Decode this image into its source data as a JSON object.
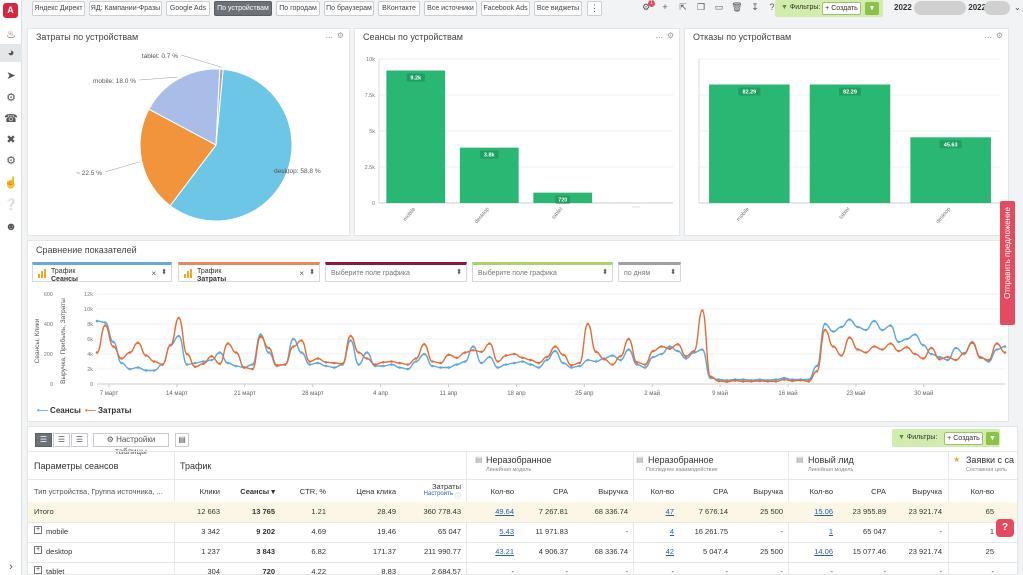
{
  "sidebar": {
    "logo": "A",
    "icons": [
      "bell-icon",
      "dashboard-icon",
      "rocket-icon",
      "gears-icon",
      "phone-icon",
      "tools-icon",
      "gear-icon",
      "hand-icon",
      "help-icon",
      "user-icon",
      "expand-icon"
    ]
  },
  "topbar": {
    "tabs": [
      "Яндекс Директ",
      "ЯД: Кампании-Фразы",
      "Google Ads",
      "По устройствам",
      "По городам",
      "По браузерам",
      "ВКонтакте",
      "Все источники",
      "Facebook Ads",
      "Все виджеты"
    ],
    "active_tab": "По устройствам",
    "more": "⋮",
    "badge": "1",
    "filters_label": "Фильтры:",
    "create_label": "Создать",
    "period_start": "2022",
    "period_end": "2022"
  },
  "pie": {
    "title": "Затраты по устройствам",
    "chart_data": {
      "type": "pie",
      "slices": [
        {
          "label": "desktop: 58.8 %",
          "value": 58.8,
          "color": "#6ec6e6"
        },
        {
          "label": "~ 22.5 %",
          "value": 22.5,
          "color": "#f1943b"
        },
        {
          "label": "mobile: 18.0 %",
          "value": 18.0,
          "color": "#a8bde8"
        },
        {
          "label": "tablet: 0.7 %",
          "value": 0.7,
          "color": "#aaaaaa"
        }
      ]
    }
  },
  "sessions": {
    "title": "Сеансы по устройствам",
    "chart_data": {
      "type": "bar",
      "categories": [
        "mobile",
        "desktop",
        "tablet",
        ""
      ],
      "values": [
        9202,
        3843,
        720,
        0
      ],
      "value_labels": [
        "9.2k",
        "3.8k",
        "720",
        ""
      ],
      "yticks": [
        "0",
        "2.5k",
        "5k",
        "7.5k",
        "10k"
      ],
      "ylim": [
        0,
        10000
      ],
      "color": "#2ab673"
    }
  },
  "bounces": {
    "title": "Отказы по устройствам",
    "chart_data": {
      "type": "bar",
      "categories": [
        "mobile",
        "tablet",
        "desktop"
      ],
      "values": [
        82.29,
        82.29,
        45.63
      ],
      "value_labels": [
        "82.29",
        "82.29",
        "45.63"
      ],
      "ylim": [
        0,
        100
      ],
      "color": "#2ab673"
    }
  },
  "compare": {
    "title": "Сравнение показателей",
    "selectors": [
      {
        "line1": "Трафик",
        "line2": "Сеансы",
        "x": "×",
        "color": "#6ba8d8"
      },
      {
        "line1": "Трафик",
        "line2": "Затраты",
        "x": "×",
        "color": "#e8875a"
      },
      {
        "placeholder": "Выберите поле графика",
        "color": "#8b1a3a"
      },
      {
        "placeholder": "Выберите поле графика",
        "color": "#a7d46b"
      },
      {
        "placeholder": "по дням",
        "color": "#a0a0a0"
      }
    ],
    "arrow": "⬍",
    "yleft_label": "Сеансы, Клики",
    "yright_label": "Выручка, Прибыль, Затраты",
    "chart_data": {
      "type": "line",
      "x_ticks": [
        "7 март",
        "14 март",
        "21 март",
        "28 март",
        "4 апр",
        "11 апр",
        "18 апр",
        "25 апр",
        "2 май",
        "9 май",
        "16 май",
        "23 май",
        "30 май"
      ],
      "yleft_ticks": [
        "0",
        "200",
        "400",
        "600"
      ],
      "yright_ticks": [
        "0",
        "2k",
        "4k",
        "6k",
        "8k",
        "10k",
        "12k"
      ],
      "yleft_lim": [
        0,
        600
      ],
      "yright_lim": [
        0,
        12000
      ],
      "series": [
        {
          "name": "Сеансы",
          "color": "#5fa8dd",
          "axis": "left",
          "values": [
            420,
            410,
            280,
            140,
            100,
            110,
            90,
            90,
            130,
            260,
            320,
            130,
            140,
            150,
            160,
            210,
            140,
            120,
            110,
            130,
            330,
            210,
            120,
            130,
            300,
            210,
            130,
            140,
            120,
            110,
            130,
            290,
            130,
            210,
            120,
            120,
            130,
            110,
            100,
            150,
            200,
            120,
            110,
            110,
            130,
            150,
            250,
            140,
            180,
            110,
            130,
            140,
            150,
            130,
            110,
            160,
            220,
            140,
            110,
            120,
            160,
            150,
            170,
            190,
            160,
            230,
            130,
            110,
            180,
            200,
            250,
            220,
            170,
            210,
            230,
            40,
            30,
            25,
            30,
            30,
            25,
            30,
            25,
            30,
            40,
            30,
            30,
            30,
            120,
            400,
            350,
            380,
            430,
            380,
            360,
            420,
            360,
            390,
            280,
            300,
            330,
            260,
            200,
            180,
            160,
            240,
            200,
            280,
            180,
            150,
            230,
            250
          ]
        },
        {
          "name": "Затраты",
          "color": "#e46e3a",
          "axis": "right",
          "values": [
            4200,
            7800,
            5000,
            3400,
            4200,
            5500,
            3800,
            3000,
            2600,
            5200,
            8800,
            4000,
            2300,
            2700,
            3700,
            2700,
            5400,
            4200,
            2200,
            2000,
            6300,
            4800,
            2500,
            2600,
            5000,
            5800,
            3000,
            3400,
            2900,
            2800,
            2700,
            6400,
            4200,
            3400,
            2600,
            2900,
            3000,
            2800,
            2600,
            3400,
            5300,
            3000,
            2800,
            3900,
            3500,
            4200,
            4500,
            4300,
            5400,
            3000,
            3800,
            4000,
            3500,
            3200,
            2800,
            3600,
            5000,
            3900,
            2500,
            2800,
            8000,
            4300,
            3300,
            2600,
            3700,
            6000,
            2900,
            2600,
            4400,
            5000,
            4700,
            5300,
            3700,
            4400,
            9800,
            1000,
            400,
            300,
            450,
            350,
            350,
            400,
            350,
            350,
            600,
            400,
            500,
            350,
            1700,
            7200,
            5000,
            3800,
            6200,
            4600,
            4200,
            5000,
            4600,
            5400,
            4400,
            4900,
            4000,
            3400,
            4800,
            3300,
            3600,
            3200,
            4100,
            5500,
            3500,
            3200,
            5400,
            4200
          ]
        }
      ]
    }
  },
  "table": {
    "settings_label": "Настройки таблицы",
    "filters_label": "Фильтры:",
    "create_label": "Создать",
    "params_header": "Параметры сеансов",
    "traffic_header": "Трафик",
    "groups": [
      {
        "title": "Неразобранное",
        "sub": "Линейная модель"
      },
      {
        "title": "Неразобранное",
        "sub": "Последнее взаимодействие"
      },
      {
        "title": "Новый лид",
        "sub": "Линейная модель"
      },
      {
        "title": "Заявки с са",
        "sub": "Составная цель"
      }
    ],
    "columns": {
      "params": "Тип устройства, Группа источника, ...",
      "clicks": "Клики",
      "sessions": "Сеансы ▾",
      "ctr": "CTR, %",
      "cpc": "Цена клика",
      "cost": "Затраты",
      "cost_sub": "Настроить",
      "qty": "Кол-во",
      "cpa": "CPA",
      "revenue": "Выручка"
    },
    "rows": [
      {
        "name": "Итого",
        "clicks": "12 663",
        "sessions": "13 765",
        "ctr": "1.21",
        "cpc": "28.49",
        "cost": "360 778.43",
        "g1": [
          "49.64",
          "7 267.81",
          "68 336.74"
        ],
        "g2": [
          "47",
          "7 676.14",
          "25 500"
        ],
        "g3": [
          "15.06",
          "23 955.89",
          "23 921.74"
        ],
        "g4": "65"
      },
      {
        "name": "mobile",
        "clicks": "3 342",
        "sessions": "9 202",
        "ctr": "4.69",
        "cpc": "19.46",
        "cost": "65 047",
        "g1": [
          "5.43",
          "11 971.83",
          "-"
        ],
        "g2": [
          "4",
          "16 261.75",
          "-"
        ],
        "g3": [
          "1",
          "65 047",
          "-"
        ],
        "g4": "1"
      },
      {
        "name": "desktop",
        "clicks": "1 237",
        "sessions": "3 843",
        "ctr": "6.82",
        "cpc": "171.37",
        "cost": "211 990.77",
        "g1": [
          "43.21",
          "4 906.37",
          "68 336.74"
        ],
        "g2": [
          "42",
          "5 047.4",
          "25 500"
        ],
        "g3": [
          "14.06",
          "15 077.46",
          "23 921.74"
        ],
        "g4": "25"
      },
      {
        "name": "tablet",
        "clicks": "304",
        "sessions": "720",
        "ctr": "4.22",
        "cpc": "8.83",
        "cost": "2 684.57",
        "g1": [
          "-",
          "-",
          "-"
        ],
        "g2": [
          "-",
          "-",
          "-"
        ],
        "g3": [
          "-",
          "-",
          "-"
        ],
        "g4": "-"
      }
    ],
    "expand": "+"
  },
  "side_tab": "Отправить предложение",
  "help": "?"
}
